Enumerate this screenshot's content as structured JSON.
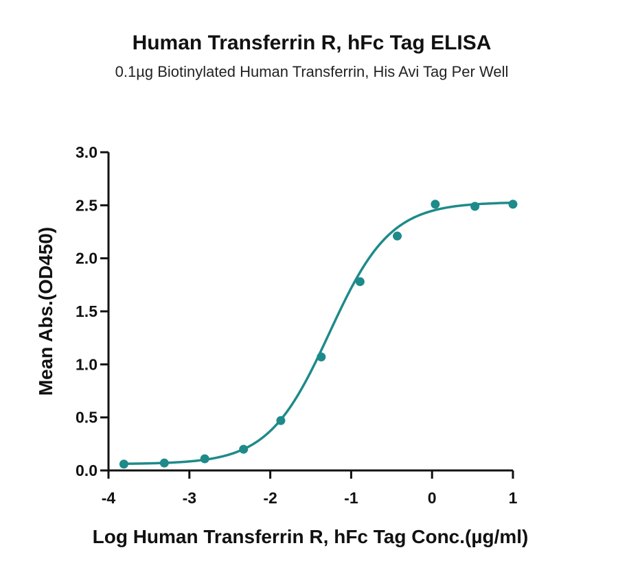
{
  "chart_data": {
    "type": "scatter",
    "title": "Human Transferrin R, hFc Tag ELISA",
    "subtitle": "0.1µg Biotinylated Human Transferrin, His Avi Tag Per Well",
    "xlabel": "Log Human Transferrin R, hFc Tag Conc.(µg/ml)",
    "ylabel": "Mean Abs.(OD450)",
    "xlim": [
      -4,
      1
    ],
    "ylim": [
      0,
      3.0
    ],
    "x_ticks": [
      -4,
      -3,
      -2,
      -1,
      0,
      1
    ],
    "x_tick_labels": [
      "-4",
      "-3",
      "-2",
      "-1",
      "0",
      "1"
    ],
    "y_ticks": [
      0,
      0.5,
      1.0,
      1.5,
      2.0,
      2.5,
      3.0
    ],
    "y_tick_labels": [
      "0.0",
      "0.5",
      "1.0",
      "1.5",
      "2.0",
      "2.5",
      "3.0"
    ],
    "grid": false,
    "color": "#1e8a8a",
    "points": {
      "x": [
        -3.81,
        -3.31,
        -2.81,
        -2.33,
        -1.87,
        -1.37,
        -0.89,
        -0.43,
        0.04,
        0.53,
        1.0
      ],
      "y": [
        0.06,
        0.07,
        0.11,
        0.2,
        0.47,
        1.07,
        1.78,
        2.21,
        2.51,
        2.49,
        2.51
      ]
    },
    "fit_curve": {
      "model": "4PL",
      "bottom": 0.06,
      "top": 2.53,
      "logEC50": -1.27,
      "hill": 1.15
    }
  }
}
